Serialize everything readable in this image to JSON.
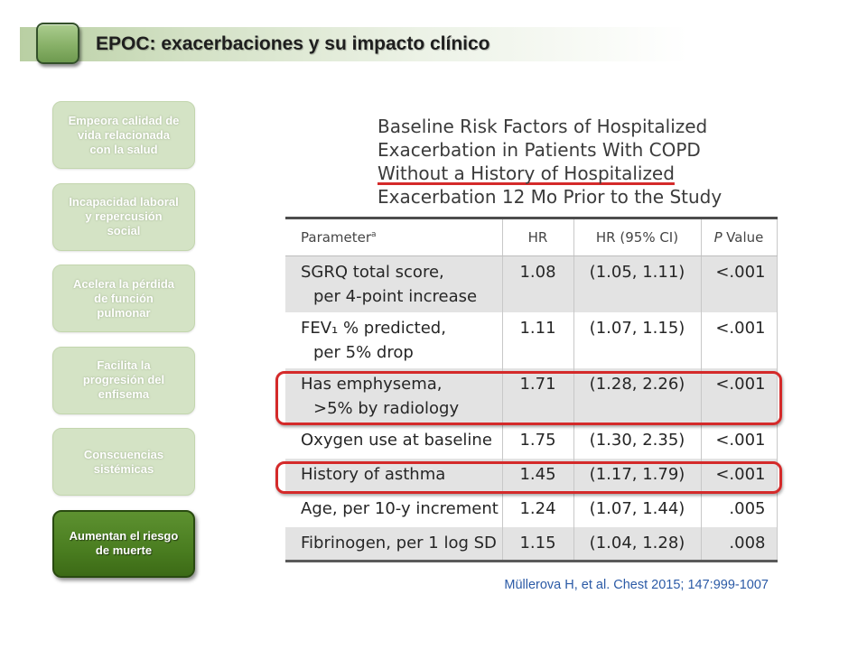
{
  "header": {
    "title": "EPOC: exacerbaciones y su impacto clínico"
  },
  "nav": {
    "items": [
      {
        "label": "Empeora calidad de\nvida relacionada\ncon la salud",
        "active": false
      },
      {
        "label": "Incapacidad laboral\ny repercusión\nsocial",
        "active": false
      },
      {
        "label": "Acelera la pérdida\nde función\npulmonar",
        "active": false
      },
      {
        "label": "Facilita la\nprogresión del\nenfisema",
        "active": false
      },
      {
        "label": "Conscuencias\nsistémicas",
        "active": false
      },
      {
        "label": "Aumentan el riesgo\nde muerte",
        "active": true
      }
    ]
  },
  "figure": {
    "title_lines": [
      "Baseline Risk Factors of Hospitalized",
      "Exacerbation in Patients With COPD",
      "Without a History of Hospitalized",
      "Exacerbation 12 Mo Prior to the Study"
    ],
    "table": {
      "columns": {
        "parameter": "Parameter",
        "parameter_note": "a",
        "hr": "HR",
        "ci": "HR (95% CI)",
        "p_symbol": "P",
        "p_label": "Value"
      },
      "rows": [
        {
          "parameter": [
            "SGRQ total score,",
            "per 4-point increase"
          ],
          "hr": "1.08",
          "ci": "(1.05, 1.11)",
          "p": "<.001",
          "highlighted": false
        },
        {
          "parameter": [
            "FEV₁ % predicted,",
            "per 5% drop"
          ],
          "hr": "1.11",
          "ci": "(1.07, 1.15)",
          "p": "<.001",
          "highlighted": false
        },
        {
          "parameter": [
            "Has emphysema,",
            ">5% by radiology"
          ],
          "hr": "1.71",
          "ci": "(1.28, 2.26)",
          "p": "<.001",
          "highlighted": true
        },
        {
          "parameter": [
            "Oxygen use at baseline"
          ],
          "hr": "1.75",
          "ci": "(1.30, 2.35)",
          "p": "<.001",
          "highlighted": false
        },
        {
          "parameter": [
            "History of asthma"
          ],
          "hr": "1.45",
          "ci": "(1.17, 1.79)",
          "p": "<.001",
          "highlighted": true
        },
        {
          "parameter": [
            "Age, per 10-y increment"
          ],
          "hr": "1.24",
          "ci": "(1.07, 1.44)",
          "p": ".005",
          "highlighted": false
        },
        {
          "parameter": [
            "Fibrinogen, per 1 log SD"
          ],
          "hr": "1.15",
          "ci": "(1.04, 1.28)",
          "p": ".008",
          "highlighted": false
        }
      ]
    }
  },
  "citation": "Müllerova H, et al. Chest 2015; 147:999-1007",
  "colors": {
    "accent": "#4a7d20",
    "highlight": "#d42a2a",
    "citation": "#2b5aa6",
    "row_shade": "#e3e3e3"
  }
}
